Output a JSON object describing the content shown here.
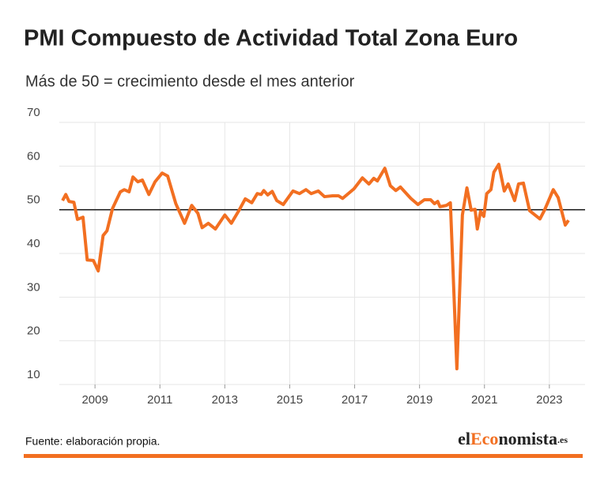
{
  "chart_data": {
    "type": "line",
    "title": "PMI Compuesto de Actividad Total Zona Euro",
    "subtitle": "Más de 50 = crecimiento desde el mes anterior",
    "source": "Fuente: elaboración propia.",
    "logo": [
      "el",
      "Eco",
      "nomista",
      ".es"
    ],
    "x": [
      2008.0,
      2008.1,
      2008.2,
      2008.35,
      2008.46,
      2008.63,
      2008.76,
      2008.95,
      2009.1,
      2009.25,
      2009.37,
      2009.54,
      2009.78,
      2009.9,
      2010.05,
      2010.17,
      2010.32,
      2010.46,
      2010.66,
      2010.85,
      2011.07,
      2011.24,
      2011.49,
      2011.76,
      2011.98,
      2012.17,
      2012.3,
      2012.49,
      2012.71,
      2013.0,
      2013.2,
      2013.44,
      2013.63,
      2013.83,
      2014.0,
      2014.12,
      2014.2,
      2014.32,
      2014.46,
      2014.6,
      2014.8,
      2015.1,
      2015.3,
      2015.5,
      2015.66,
      2015.88,
      2016.07,
      2016.32,
      2016.5,
      2016.63,
      2016.98,
      2017.24,
      2017.44,
      2017.59,
      2017.7,
      2017.93,
      2018.1,
      2018.27,
      2018.41,
      2018.73,
      2018.95,
      2019.15,
      2019.34,
      2019.46,
      2019.56,
      2019.63,
      2019.83,
      2019.95,
      2020.15,
      2020.32,
      2020.46,
      2020.59,
      2020.71,
      2020.78,
      2020.88,
      2020.98,
      2021.07,
      2021.2,
      2021.29,
      2021.44,
      2021.61,
      2021.73,
      2021.93,
      2022.05,
      2022.2,
      2022.39,
      2022.71,
      2022.85,
      2023.12,
      2023.27,
      2023.49,
      2023.59
    ],
    "series": [
      {
        "name": "PMI Compuesto",
        "color": "#f26f21",
        "values": [
          52.1,
          53.5,
          51.9,
          51.7,
          47.8,
          48.3,
          38.5,
          38.4,
          36.0,
          44.1,
          45.2,
          50.3,
          54.1,
          54.6,
          54.1,
          57.5,
          56.4,
          56.8,
          53.5,
          56.4,
          58.4,
          57.7,
          51.4,
          46.9,
          51.0,
          49.2,
          45.9,
          46.9,
          45.6,
          48.8,
          46.9,
          49.9,
          52.5,
          51.6,
          53.7,
          53.5,
          54.4,
          53.4,
          54.2,
          52.1,
          51.2,
          54.3,
          53.7,
          54.6,
          53.7,
          54.3,
          53.0,
          53.2,
          53.2,
          52.6,
          54.8,
          57.3,
          55.9,
          57.2,
          56.6,
          59.5,
          55.5,
          54.4,
          55.2,
          52.6,
          51.2,
          52.3,
          52.3,
          51.4,
          51.9,
          50.7,
          51.0,
          51.6,
          13.6,
          48.8,
          55.0,
          49.9,
          50.1,
          45.6,
          49.6,
          48.5,
          53.7,
          54.6,
          58.6,
          60.4,
          54.3,
          55.9,
          52.1,
          55.9,
          56.1,
          49.8,
          47.9,
          49.9,
          54.6,
          52.8,
          46.5,
          47.6
        ]
      }
    ],
    "reference_line": 50,
    "xlim": [
      2007.9,
      2024.1
    ],
    "xticks": [
      2009,
      2011,
      2013,
      2015,
      2017,
      2019,
      2021,
      2023
    ],
    "ylim": [
      10,
      70
    ],
    "yticks": [
      10,
      20,
      30,
      40,
      50,
      60,
      70
    ],
    "grid": true
  }
}
